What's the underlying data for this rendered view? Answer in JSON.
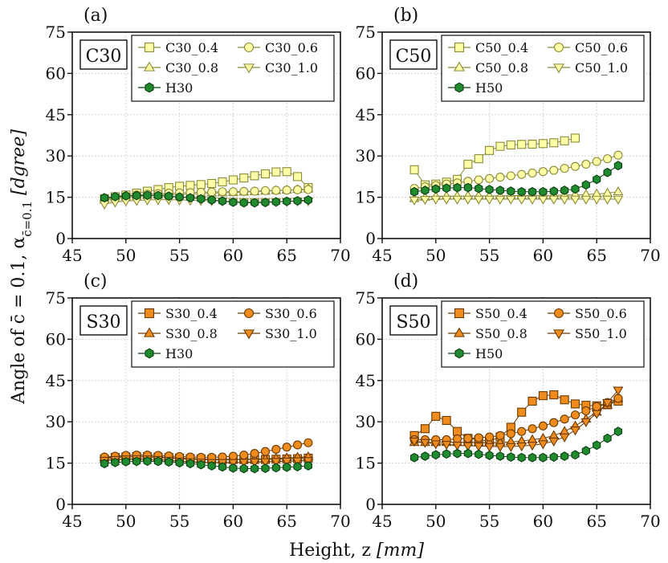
{
  "figure": {
    "ylabel": "Angle of c̄ = 0.1, α",
    "ylabel_sub": "c̄=0.1",
    "ylabel_unit": "[dgree]",
    "xlabel": "Height, z",
    "xlabel_unit": "[mm]"
  },
  "colors": {
    "c_fill": "#ffffa8",
    "c_stroke": "#8a8a3a",
    "s_fill": "#f08c1e",
    "s_stroke": "#6b3a00",
    "h_fill": "#1f8a2e",
    "h_stroke": "#0b3d12"
  },
  "chart_data": [
    {
      "type": "line",
      "panel_label": "(a)",
      "badge": "C30",
      "xlim": [
        45,
        70
      ],
      "ylim": [
        0,
        75
      ],
      "xticks": [
        45,
        50,
        55,
        60,
        65,
        70
      ],
      "yticks": [
        0,
        15,
        30,
        45,
        60,
        75
      ],
      "grid": true,
      "legend_position": "top-right",
      "legend_order": [
        0,
        2,
        1,
        3,
        4
      ],
      "x": [
        48,
        49,
        50,
        51,
        52,
        53,
        54,
        55,
        56,
        57,
        58,
        59,
        60,
        61,
        62,
        63,
        64,
        65,
        66,
        67
      ],
      "series": [
        {
          "name": "C30_0.4",
          "marker": "square",
          "group": "c",
          "values": [
            14.5,
            15.2,
            15.8,
            16.5,
            17.2,
            17.8,
            18.5,
            19.0,
            19.3,
            19.6,
            20.0,
            20.6,
            21.3,
            22.0,
            22.8,
            23.5,
            24.2,
            24.3,
            22.5,
            18.5
          ]
        },
        {
          "name": "C30_0.8",
          "marker": "triangle-up",
          "group": "c",
          "values": [
            14.0,
            14.6,
            15.0,
            15.3,
            15.6,
            15.8,
            16.0,
            16.0,
            16.2,
            16.3,
            16.5,
            16.6,
            16.7,
            16.9,
            17.0,
            17.2,
            17.4,
            17.6,
            17.8,
            18.0
          ]
        },
        {
          "name": "C30_0.6",
          "marker": "circle",
          "group": "c",
          "values": [
            14.3,
            14.9,
            15.4,
            15.8,
            16.1,
            16.3,
            16.5,
            16.6,
            16.7,
            16.8,
            16.9,
            17.0,
            17.0,
            17.1,
            17.2,
            17.4,
            17.5,
            17.6,
            17.7,
            17.8
          ]
        },
        {
          "name": "C30_1.0",
          "marker": "triangle-down",
          "group": "c",
          "values": [
            12.5,
            13.2,
            13.6,
            13.8,
            14.0,
            14.1,
            14.1,
            14.0,
            13.9,
            13.8,
            13.7,
            13.6,
            13.5,
            13.4,
            13.4,
            13.4,
            13.4,
            13.5,
            13.6,
            13.6
          ]
        },
        {
          "name": "H30",
          "marker": "hexagon",
          "group": "h",
          "values": [
            14.8,
            15.2,
            15.5,
            15.6,
            15.7,
            15.6,
            15.4,
            15.1,
            14.8,
            14.4,
            14.0,
            13.6,
            13.2,
            13.0,
            13.0,
            13.1,
            13.3,
            13.5,
            13.7,
            14.0
          ]
        }
      ]
    },
    {
      "type": "line",
      "panel_label": "(b)",
      "badge": "C50",
      "xlim": [
        45,
        70
      ],
      "ylim": [
        0,
        75
      ],
      "xticks": [
        45,
        50,
        55,
        60,
        65,
        70
      ],
      "yticks": [
        0,
        15,
        30,
        45,
        60,
        75
      ],
      "grid": true,
      "legend_position": "top-right",
      "legend_order": [
        0,
        2,
        1,
        3,
        4
      ],
      "x": [
        48,
        49,
        50,
        51,
        52,
        53,
        54,
        55,
        56,
        57,
        58,
        59,
        60,
        61,
        62,
        63,
        64,
        65,
        66,
        67
      ],
      "series": [
        {
          "name": "C50_0.4",
          "marker": "square",
          "group": "c",
          "values": [
            25.0,
            19.5,
            19.8,
            20.5,
            21.5,
            27.0,
            29.0,
            32.0,
            33.5,
            34.0,
            34.2,
            34.3,
            34.5,
            34.8,
            35.5,
            36.5,
            null,
            null,
            null,
            null
          ]
        },
        {
          "name": "C50_0.8",
          "marker": "triangle-up",
          "group": "c",
          "values": [
            14.5,
            15.0,
            15.3,
            15.4,
            15.4,
            15.5,
            15.5,
            15.5,
            15.5,
            15.6,
            15.6,
            15.6,
            15.7,
            15.7,
            15.8,
            15.9,
            16.0,
            16.2,
            16.5,
            17.0
          ]
        },
        {
          "name": "C50_0.6",
          "marker": "circle",
          "group": "c",
          "values": [
            18.2,
            18.8,
            19.3,
            19.8,
            20.2,
            20.8,
            21.3,
            21.8,
            22.3,
            22.8,
            23.3,
            23.8,
            24.3,
            24.8,
            25.5,
            26.2,
            27.0,
            28.0,
            29.0,
            30.3
          ]
        },
        {
          "name": "C50_1.0",
          "marker": "triangle-down",
          "group": "c",
          "values": [
            14.0,
            14.2,
            14.3,
            14.3,
            14.3,
            14.3,
            14.3,
            14.3,
            14.3,
            14.3,
            14.3,
            14.3,
            14.3,
            14.3,
            14.3,
            14.3,
            14.3,
            14.3,
            14.3,
            14.3
          ]
        },
        {
          "name": "H50",
          "marker": "hexagon",
          "group": "h",
          "values": [
            17.0,
            17.5,
            18.0,
            18.3,
            18.5,
            18.5,
            18.2,
            17.8,
            17.5,
            17.2,
            17.0,
            17.0,
            17.0,
            17.2,
            17.5,
            18.0,
            19.5,
            21.5,
            24.0,
            26.5
          ]
        }
      ]
    },
    {
      "type": "line",
      "panel_label": "(c)",
      "badge": "S30",
      "xlim": [
        45,
        70
      ],
      "ylim": [
        0,
        75
      ],
      "xticks": [
        45,
        50,
        55,
        60,
        65,
        70
      ],
      "yticks": [
        0,
        15,
        30,
        45,
        60,
        75
      ],
      "grid": true,
      "legend_position": "top-right",
      "legend_order": [
        0,
        2,
        1,
        3,
        4
      ],
      "x": [
        48,
        49,
        50,
        51,
        52,
        53,
        54,
        55,
        56,
        57,
        58,
        59,
        60,
        61,
        62,
        63,
        64,
        65,
        66,
        67
      ],
      "series": [
        {
          "name": "S30_0.4",
          "marker": "square",
          "group": "s",
          "values": [
            16.5,
            17.0,
            17.2,
            17.3,
            17.3,
            17.2,
            17.0,
            16.8,
            16.6,
            16.5,
            16.4,
            16.3,
            16.3,
            16.3,
            16.3,
            16.3,
            16.4,
            16.5,
            16.6,
            16.8
          ]
        },
        {
          "name": "S30_0.8",
          "marker": "triangle-up",
          "group": "s",
          "values": [
            17.0,
            17.2,
            17.3,
            17.3,
            17.2,
            17.0,
            16.8,
            16.6,
            16.4,
            16.3,
            16.2,
            16.2,
            16.2,
            16.3,
            16.4,
            16.5,
            16.7,
            16.9,
            17.1,
            17.3
          ]
        },
        {
          "name": "S30_0.6",
          "marker": "circle",
          "group": "s",
          "values": [
            17.2,
            17.5,
            17.8,
            17.9,
            17.9,
            17.8,
            17.6,
            17.4,
            17.2,
            17.1,
            17.1,
            17.2,
            17.5,
            17.9,
            18.5,
            19.2,
            20.0,
            20.8,
            21.6,
            22.4
          ]
        },
        {
          "name": "S30_1.0",
          "marker": "triangle-down",
          "group": "s",
          "values": [
            16.0,
            16.3,
            16.5,
            16.6,
            16.5,
            16.3,
            16.0,
            15.7,
            15.5,
            15.3,
            15.2,
            15.2,
            15.2,
            15.3,
            15.4,
            15.5,
            15.6,
            15.7,
            15.8,
            15.9
          ]
        },
        {
          "name": "H30",
          "marker": "hexagon",
          "group": "h",
          "values": [
            14.8,
            15.2,
            15.5,
            15.6,
            15.7,
            15.6,
            15.4,
            15.1,
            14.8,
            14.4,
            14.0,
            13.6,
            13.2,
            13.0,
            13.0,
            13.1,
            13.3,
            13.5,
            13.7,
            14.0
          ]
        }
      ]
    },
    {
      "type": "line",
      "panel_label": "(d)",
      "badge": "S50",
      "xlim": [
        45,
        70
      ],
      "ylim": [
        0,
        75
      ],
      "xticks": [
        45,
        50,
        55,
        60,
        65,
        70
      ],
      "yticks": [
        0,
        15,
        30,
        45,
        60,
        75
      ],
      "grid": true,
      "legend_position": "top-right",
      "legend_order": [
        0,
        2,
        1,
        3,
        4
      ],
      "x": [
        48,
        49,
        50,
        51,
        52,
        53,
        54,
        55,
        56,
        57,
        58,
        59,
        60,
        61,
        62,
        63,
        64,
        65,
        66,
        67
      ],
      "series": [
        {
          "name": "S50_0.4",
          "marker": "square",
          "group": "s",
          "values": [
            25.0,
            27.5,
            32.0,
            30.5,
            26.5,
            24.0,
            23.5,
            23.0,
            24.5,
            28.0,
            33.5,
            37.5,
            39.5,
            39.8,
            38.0,
            36.5,
            36.0,
            35.8,
            36.2,
            37.5
          ]
        },
        {
          "name": "S50_0.8",
          "marker": "triangle-up",
          "group": "s",
          "values": [
            22.5,
            22.5,
            22.5,
            22.5,
            22.5,
            22.5,
            22.5,
            22.5,
            22.5,
            22.7,
            23.0,
            23.5,
            24.0,
            25.0,
            26.5,
            28.5,
            31.0,
            33.5,
            36.0,
            38.5
          ]
        },
        {
          "name": "S50_0.6",
          "marker": "circle",
          "group": "s",
          "values": [
            23.5,
            23.5,
            23.5,
            23.5,
            23.8,
            24.0,
            24.2,
            24.5,
            25.0,
            25.7,
            26.5,
            27.5,
            28.5,
            29.7,
            31.0,
            32.5,
            34.0,
            35.5,
            37.0,
            38.5
          ]
        },
        {
          "name": "S50_1.0",
          "marker": "triangle-down",
          "group": "s",
          "values": [
            23.0,
            22.5,
            22.0,
            21.8,
            21.5,
            21.3,
            21.2,
            21.0,
            21.0,
            21.0,
            21.2,
            21.5,
            22.0,
            23.0,
            24.5,
            27.0,
            30.0,
            33.0,
            37.0,
            41.5
          ]
        },
        {
          "name": "H50",
          "marker": "hexagon",
          "group": "h",
          "values": [
            17.0,
            17.5,
            18.0,
            18.3,
            18.5,
            18.5,
            18.2,
            17.8,
            17.5,
            17.2,
            17.0,
            17.0,
            17.0,
            17.2,
            17.5,
            18.0,
            19.5,
            21.5,
            24.0,
            26.5
          ]
        }
      ]
    }
  ]
}
